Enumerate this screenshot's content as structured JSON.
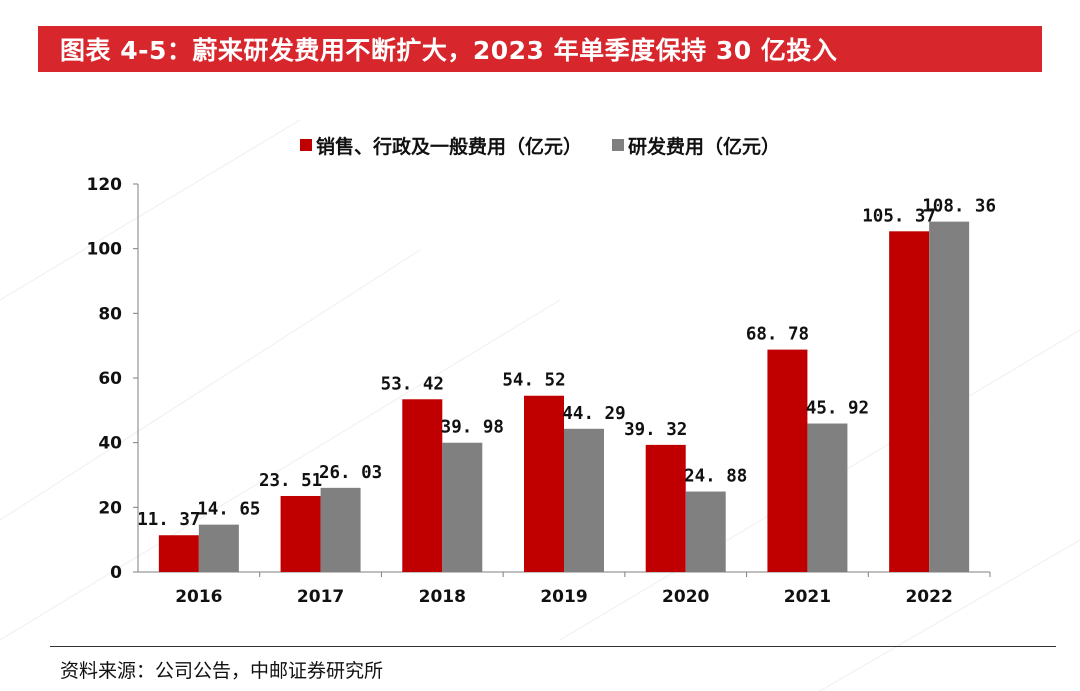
{
  "title": "图表 4-5：蔚来研发费用不断扩大，2023 年单季度保持 30 亿投入",
  "source": "资料来源：公司公告，中邮证券研究所",
  "colors": {
    "title_bg": "#d7262c",
    "series_red": "#c00000",
    "series_gray": "#808080"
  },
  "chart_data": {
    "type": "bar",
    "categories": [
      "2016",
      "2017",
      "2018",
      "2019",
      "2020",
      "2021",
      "2022"
    ],
    "series": [
      {
        "name": "销售、行政及一般费用（亿元）",
        "values": [
          11.37,
          23.51,
          53.42,
          54.52,
          39.32,
          68.78,
          105.37
        ],
        "labels": [
          "11. 37",
          "23. 51",
          "53. 42",
          "54. 52",
          "39. 32",
          "68. 78",
          "105. 37"
        ],
        "color": "#c00000"
      },
      {
        "name": "研发费用（亿元）",
        "values": [
          14.65,
          26.03,
          39.98,
          44.29,
          24.88,
          45.92,
          108.36
        ],
        "labels": [
          "14. 65",
          "26. 03",
          "39. 98",
          "44. 29",
          "24. 88",
          "45. 92",
          "108. 36"
        ],
        "color": "#808080"
      }
    ],
    "ylim": [
      0,
      120
    ],
    "yticks": [
      "0",
      "20",
      "40",
      "60",
      "80",
      "100",
      "120"
    ],
    "legend_position": "top-center",
    "grid": false
  }
}
